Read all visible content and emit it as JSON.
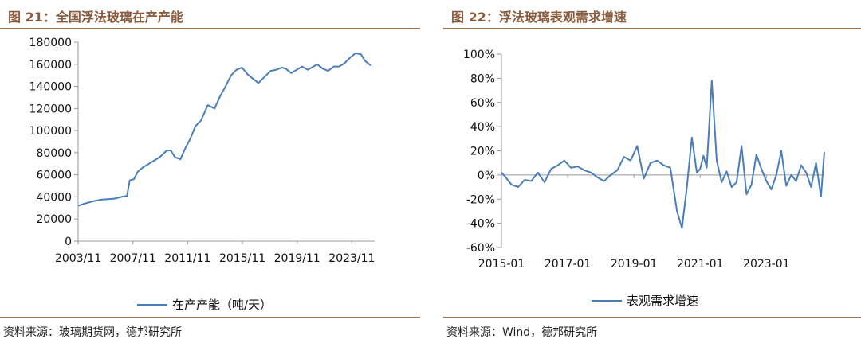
{
  "left": {
    "fig_title": "图 21：全国浮法玻璃在产产能",
    "source": "资料来源：玻璃期货网，德邦研究所",
    "color": "#4a7ebb",
    "chart_data": {
      "type": "line",
      "title": "全国浮法玻璃在产产能",
      "xlabel": "",
      "ylabel": "",
      "x_tick_labels": [
        "2003/11",
        "2007/11",
        "2011/11",
        "2015/11",
        "2019/11",
        "2023/11"
      ],
      "y_tick_labels": [
        "0",
        "20000",
        "40000",
        "60000",
        "80000",
        "100000",
        "120000",
        "140000",
        "160000",
        "180000"
      ],
      "ylim": [
        0,
        180000
      ],
      "xlim": [
        2003.83,
        2025.5
      ],
      "grid": false,
      "legend_position": "bottom",
      "series": [
        {
          "name": "在产产能（吨/天）",
          "x": [
            2003.83,
            2004.3,
            2004.9,
            2005.5,
            2006.0,
            2006.5,
            2007.0,
            2007.4,
            2007.6,
            2007.9,
            2008.2,
            2008.6,
            2009.0,
            2009.4,
            2009.8,
            2010.3,
            2010.6,
            2010.9,
            2011.3,
            2011.7,
            2012.0,
            2012.4,
            2012.8,
            2013.3,
            2013.8,
            2014.2,
            2014.6,
            2015.0,
            2015.4,
            2015.8,
            2016.2,
            2016.6,
            2017.0,
            2017.4,
            2017.9,
            2018.3,
            2018.7,
            2019.0,
            2019.4,
            2019.8,
            2020.2,
            2020.6,
            2020.9,
            2021.3,
            2021.7,
            2022.1,
            2022.5,
            2022.9,
            2023.3,
            2023.7,
            2024.1,
            2024.5,
            2024.8,
            2025.2
          ],
          "values": [
            32000,
            34000,
            36000,
            37500,
            38000,
            38500,
            40000,
            41000,
            55000,
            56000,
            63000,
            67000,
            70000,
            73000,
            76000,
            82000,
            82000,
            76000,
            74000,
            85000,
            92000,
            104000,
            109000,
            123000,
            120000,
            131000,
            140000,
            150000,
            155000,
            157000,
            151000,
            147000,
            143000,
            148000,
            154000,
            155000,
            157000,
            156000,
            152000,
            155000,
            158000,
            155000,
            157000,
            160000,
            156000,
            154000,
            158000,
            158000,
            161000,
            166000,
            170000,
            169000,
            163000,
            159000
          ]
        }
      ]
    }
  },
  "right": {
    "fig_title": "图 22：浮法玻璃表观需求增速",
    "source": "资料来源：Wind，德邦研究所",
    "color": "#4a7ebb",
    "chart_data": {
      "type": "line",
      "title": "浮法玻璃表观需求增速",
      "xlabel": "",
      "ylabel": "",
      "x_tick_labels": [
        "2015-01",
        "2017-01",
        "2019-01",
        "2021-01",
        "2023-01"
      ],
      "y_tick_labels": [
        "-60%",
        "-40%",
        "-20%",
        "0%",
        "20%",
        "40%",
        "60%",
        "80%",
        "100%"
      ],
      "ylim": [
        -0.6,
        1.0
      ],
      "xlim": [
        2015.0,
        2024.75
      ],
      "grid": false,
      "legend_position": "bottom",
      "series": [
        {
          "name": "表观需求增速",
          "x": [
            2015.0,
            2015.1,
            2015.3,
            2015.5,
            2015.7,
            2015.9,
            2016.1,
            2016.3,
            2016.5,
            2016.7,
            2016.9,
            2017.1,
            2017.3,
            2017.5,
            2017.7,
            2017.9,
            2018.1,
            2018.3,
            2018.5,
            2018.7,
            2018.9,
            2019.1,
            2019.3,
            2019.5,
            2019.7,
            2019.9,
            2020.1,
            2020.3,
            2020.45,
            2020.6,
            2020.75,
            2020.9,
            2021.0,
            2021.1,
            2021.2,
            2021.35,
            2021.5,
            2021.65,
            2021.8,
            2021.95,
            2022.1,
            2022.25,
            2022.4,
            2022.55,
            2022.7,
            2022.85,
            2023.0,
            2023.15,
            2023.3,
            2023.45,
            2023.6,
            2023.75,
            2023.9,
            2024.05,
            2024.2,
            2024.35,
            2024.5,
            2024.65,
            2024.75
          ],
          "values": [
            0.02,
            -0.01,
            -0.08,
            -0.1,
            -0.04,
            -0.05,
            0.02,
            -0.06,
            0.05,
            0.08,
            0.12,
            0.06,
            0.07,
            0.04,
            0.02,
            -0.02,
            -0.05,
            0.0,
            0.04,
            0.15,
            0.12,
            0.24,
            -0.03,
            0.1,
            0.12,
            0.08,
            0.06,
            -0.3,
            -0.44,
            -0.1,
            0.31,
            0.02,
            0.05,
            0.16,
            0.06,
            0.78,
            0.12,
            -0.06,
            0.03,
            -0.1,
            -0.06,
            0.24,
            -0.16,
            -0.08,
            0.17,
            0.05,
            -0.05,
            -0.12,
            0.0,
            0.2,
            -0.09,
            0.0,
            -0.05,
            0.08,
            0.02,
            -0.1,
            0.1,
            -0.18,
            0.19
          ]
        }
      ]
    }
  }
}
